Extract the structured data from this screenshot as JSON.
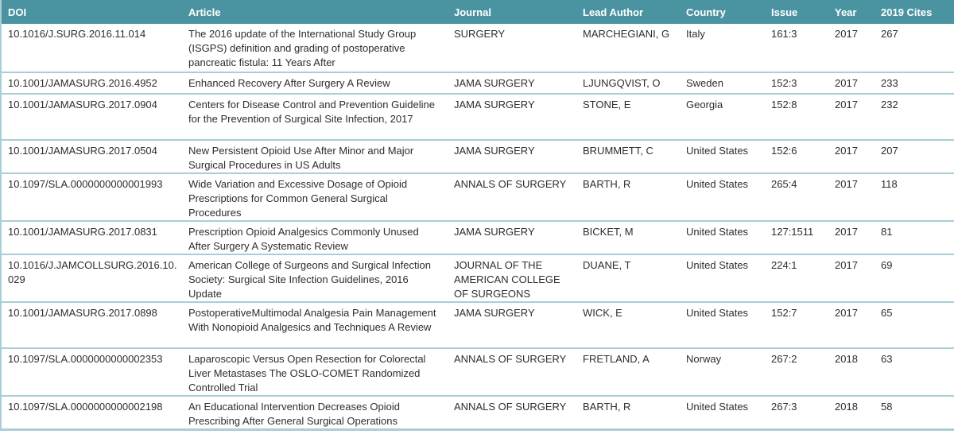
{
  "theme": {
    "header_bg": "#4a94a2",
    "header_text": "#ffffff",
    "row_border": "#a9ced5",
    "body_text": "#2d2d2d",
    "page_bg": "#ffffff"
  },
  "table": {
    "columns": [
      "DOI",
      "Article",
      "Journal",
      "Lead Author",
      "Country",
      "Issue",
      "Year",
      "2019 Cites"
    ],
    "fields": [
      "doi",
      "article",
      "journal",
      "lead_author",
      "country",
      "issue",
      "year",
      "cites"
    ],
    "rows": [
      {
        "doi": "10.1016/J.SURG.2016.11.014",
        "article": "The 2016 update of the International Study Group (ISGPS) definition and grading of postoperative pancreatic fistula: 11 Years After",
        "journal": "SURGERY",
        "lead_author": "MARCHEGIANI, G",
        "country": "Italy",
        "issue": "161:3",
        "year": "2017",
        "cites": "267"
      },
      {
        "doi": "10.1001/JAMASURG.2016.4952",
        "article": "Enhanced Recovery After Surgery A Review",
        "journal": "JAMA SURGERY",
        "lead_author": "LJUNGQVIST, O",
        "country": "Sweden",
        "issue": "152:3",
        "year": "2017",
        "cites": "233"
      },
      {
        "doi": "10.1001/JAMASURG.2017.0904",
        "article": "Centers for Disease Control and Prevention Guideline for the Prevention of Surgical Site Infection, 2017",
        "journal": "JAMA SURGERY",
        "lead_author": "STONE, E",
        "country": "Georgia",
        "issue": "152:8",
        "year": "2017",
        "cites": "232"
      },
      {
        "doi": "10.1001/JAMASURG.2017.0504",
        "article": "New Persistent Opioid Use After Minor and Major Surgical Procedures in US Adults",
        "journal": "JAMA SURGERY",
        "lead_author": "BRUMMETT, C",
        "country": "United States",
        "issue": "152:6",
        "year": "2017",
        "cites": "207"
      },
      {
        "doi": "10.1097/SLA.0000000000001993",
        "article": "Wide Variation and Excessive Dosage of Opioid Prescriptions for Common General Surgical Procedures",
        "journal": "ANNALS OF SURGERY",
        "lead_author": "BARTH, R",
        "country": "United States",
        "issue": "265:4",
        "year": "2017",
        "cites": "118"
      },
      {
        "doi": "10.1001/JAMASURG.2017.0831",
        "article": "Prescription Opioid Analgesics Commonly Unused After Surgery A Systematic Review",
        "journal": "JAMA SURGERY",
        "lead_author": "BICKET, M",
        "country": "United States",
        "issue": "127:1511",
        "year": "2017",
        "cites": "81"
      },
      {
        "doi": "10.1016/J.JAMCOLLSURG.2016.10.029",
        "article": "American College of Surgeons and Surgical Infection Society: Surgical Site Infection Guidelines, 2016 Update",
        "journal": "JOURNAL OF THE AMERICAN COLLEGE OF SURGEONS",
        "lead_author": "DUANE, T",
        "country": "United States",
        "issue": "224:1",
        "year": "2017",
        "cites": "69"
      },
      {
        "doi": "10.1001/JAMASURG.2017.0898",
        "article": "PostoperativeMultimodal Analgesia Pain Management With Nonopioid Analgesics and Techniques A Review",
        "journal": "JAMA SURGERY",
        "lead_author": "WICK, E",
        "country": "United States",
        "issue": "152:7",
        "year": "2017",
        "cites": "65"
      },
      {
        "doi": "10.1097/SLA.0000000000002353",
        "article": "Laparoscopic Versus Open Resection for Colorectal Liver Metastases The OSLO-COMET Randomized Controlled Trial",
        "journal": "ANNALS OF SURGERY",
        "lead_author": "FRETLAND, A",
        "country": "Norway",
        "issue": "267:2",
        "year": "2018",
        "cites": "63"
      },
      {
        "doi": "10.1097/SLA.0000000000002198",
        "article": "An Educational Intervention Decreases Opioid Prescribing After General Surgical Operations",
        "journal": "ANNALS OF SURGERY",
        "lead_author": "BARTH, R",
        "country": "United States",
        "issue": "267:3",
        "year": "2018",
        "cites": "58"
      }
    ]
  }
}
